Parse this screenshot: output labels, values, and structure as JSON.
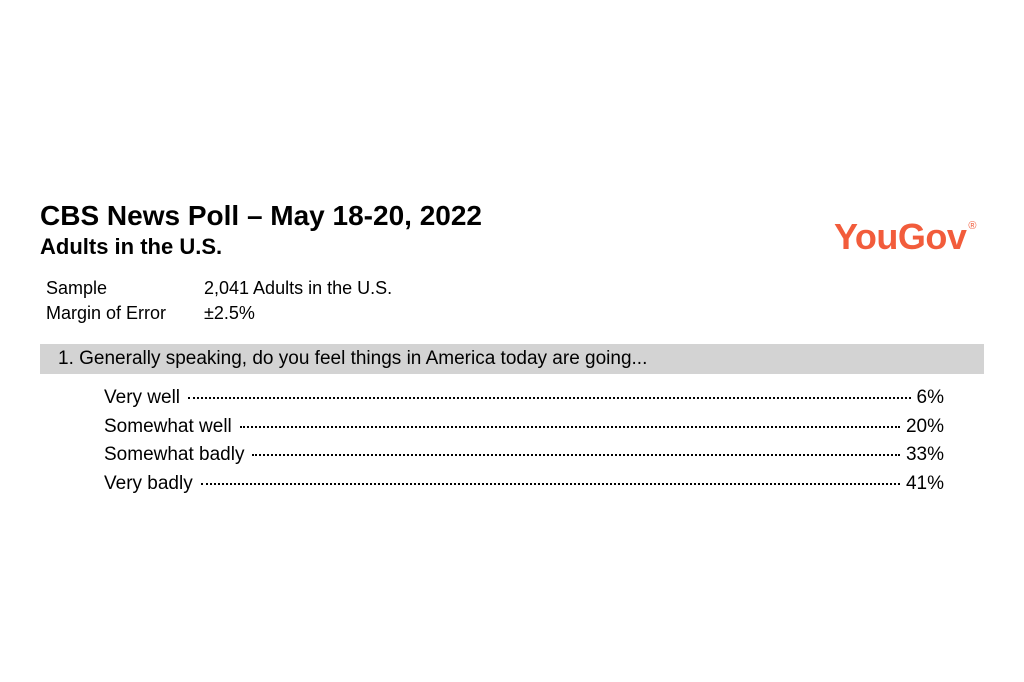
{
  "header": {
    "title": "CBS News Poll – May 18-20, 2022",
    "subtitle": "Adults in the U.S.",
    "logo_text": "YouGov",
    "logo_color": "#f25c3b"
  },
  "meta": {
    "sample_label": "Sample",
    "sample_value": "2,041 Adults in the U.S.",
    "moe_label": "Margin of Error",
    "moe_value": "±2.5%"
  },
  "question": {
    "number": "1.",
    "text": "Generally speaking, do you feel things in America today are going...",
    "bar_background": "#d3d3d3",
    "responses": [
      {
        "label": "Very well",
        "value": "6%"
      },
      {
        "label": "Somewhat well",
        "value": "20%"
      },
      {
        "label": "Somewhat badly",
        "value": "33%"
      },
      {
        "label": "Very badly",
        "value": "41%"
      }
    ]
  },
  "style": {
    "page_background": "#ffffff",
    "text_color": "#000000",
    "title_fontsize": 28,
    "subtitle_fontsize": 22,
    "body_fontsize": 19,
    "font_family": "Helvetica, Arial, sans-serif"
  }
}
